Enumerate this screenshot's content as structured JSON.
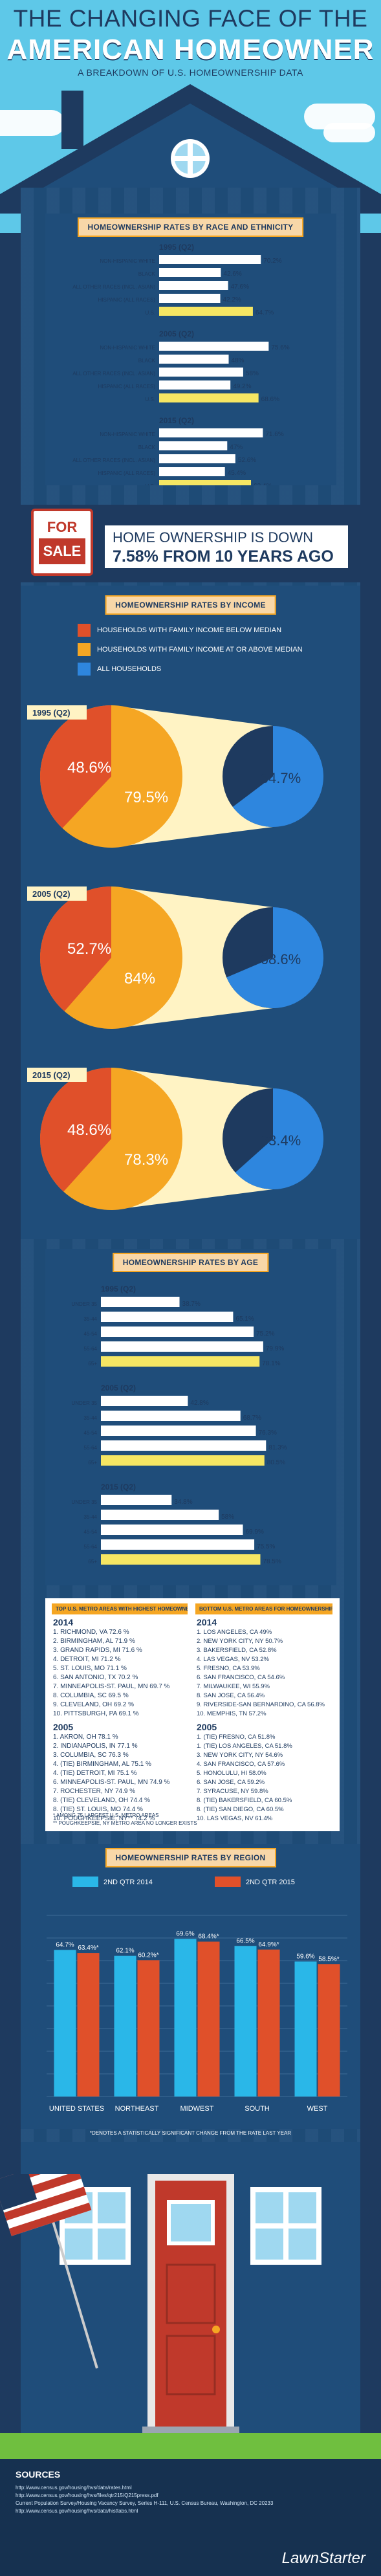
{
  "header": {
    "title_line1": "THE CHANGING FACE OF THE",
    "title_line2": "AMERICAN HOMEOWNER",
    "subtitle": "A BREAKDOWN OF U.S. HOMEOWNERSHIP DATA"
  },
  "sections": {
    "race_title": "HOMEOWNERSHIP RATES BY RACE AND ETHNICITY",
    "income_title": "HOMEOWNERSHIP RATES BY INCOME",
    "age_title": "HOMEOWNERSHIP RATES BY AGE",
    "region_title": "HOMEOWNERSHIP RATES BY REGION"
  },
  "down_banner": {
    "sign_for": "FOR",
    "sign_sale": "SALE",
    "line1": "HOME OWNERSHIP IS DOWN",
    "line2": "7.58% FROM 10 YEARS AGO"
  },
  "income_legend": [
    {
      "label": "HOUSEHOLDS WITH FAMILY INCOME BELOW MEDIAN",
      "color": "#e0502a"
    },
    {
      "label": "HOUSEHOLDS WITH FAMILY INCOME AT OR ABOVE MEDIAN",
      "color": "#f5a623"
    },
    {
      "label": "ALL HOUSEHOLDS",
      "color": "#2e86de"
    }
  ],
  "metro_lists": {
    "highest_head": "TOP U.S. METRO AREAS WITH HIGHEST HOMEOWNERSHIP RATES",
    "lowest_head": "BOTTOM U.S. METRO AREAS FOR HOMEOWNERSHIP RATES",
    "highest": [
      {
        "year": "2014",
        "items": [
          "1. RICHMOND, VA 72.6 %",
          "2. BIRMINGHAM, AL 71.9 %",
          "3. GRAND RAPIDS, MI 71.6 %",
          "4. DETROIT, MI 71.2 %",
          "5. ST. LOUIS, MO 71.1 %",
          "6. SAN ANTONIO, TX 70.2 %",
          "7. MINNEAPOLIS-ST. PAUL, MN 69.7 %",
          "8. COLUMBIA, SC 69.5 %",
          "9. CLEVELAND, OH 69.2 %",
          "10. PITTSBURGH, PA 69.1 %"
        ]
      },
      {
        "year": "2005",
        "items": [
          "1. AKRON, OH 78.1 %",
          "2. INDIANAPOLIS, IN 77.1 %",
          "3. COLUMBIA, SC 76.3 %",
          "4. (TIE) BIRMINGHAM, AL 75.1 %",
          "4. (TIE) DETROIT, MI 75.1 %",
          "6. MINNEAPOLIS-ST. PAUL, MN 74.9 %",
          "7. ROCHESTER, NY 74.9 %",
          "8. (TIE) CLEVELAND, OH 74.4 %",
          "8. (TIE) ST. LOUIS, MO 74.4 %",
          "10. POUGHKEEPSIE, NY** 74.2 %"
        ]
      }
    ],
    "lowest": [
      {
        "year": "2014",
        "items": [
          "1. LOS ANGELES, CA 49%",
          "2. NEW YORK CITY, NY 50.7%",
          "3. BAKERSFIELD, CA 52.8%",
          "4. LAS VEGAS, NV 53.2%",
          "5. FRESNO, CA 53.9%",
          "6. SAN FRANCISCO, CA 54.6%",
          "7. MILWAUKEE, WI 55.9%",
          "8. SAN JOSE, CA 56.4%",
          "9. RIVERSIDE-SAN BERNARDINO, CA 56.8%",
          "10. MEMPHIS, TN 57.2%"
        ]
      },
      {
        "year": "2005",
        "items": [
          "1. (TIE) FRESNO, CA 51.8%",
          "1. (TIE) LOS ANGELES, CA 51.8%",
          "3. NEW YORK CITY, NY 54.6%",
          "4. SAN FRANCISCO, CA 57.6%",
          "5. HONOLULU, HI 58.0%",
          "6. SAN JOSE, CA 59.2%",
          "7. SYRACUSE, NY 59.8%",
          "8. (TIE) BAKERSFIELD, CA 60.5%",
          "8. (TIE) SAN DIEGO, CA 60.5%",
          "10. LAS VEGAS, NV 61.4%"
        ]
      }
    ],
    "note1": "* AMONG 75 LARGEST U.S. METRO AREAS",
    "note2": "** POUGHKEEPSIE, NY METRO AREA NO LONGER EXISTS"
  },
  "region_note": "*DENOTES A STATISTICALLY SIGNIFICANT CHANGE FROM THE RATE LAST YEAR",
  "sources": {
    "title": "SOURCES",
    "lines": [
      "http://www.census.gov/housing/hvs/data/rates.html",
      "http://www.census.gov/housing/hvs/files/qtr215/Q215press.pdf",
      "Current Population Survey/Housing Vacancy Survey, Series H-111, U.S. Census Bureau, Washington, DC 20233",
      "http://www.census.gov/housing/hvs/data/histtabs.html"
    ],
    "brand": "LawnStarter"
  },
  "chart_data": [
    {
      "type": "bar",
      "title": "HOMEOWNERSHIP RATES BY RACE AND ETHNICITY",
      "categories": [
        "NON-HISPANIC WHITE",
        "BLACK",
        "ALL OTHER RACES (INCL. ASIAN)",
        "HISPANIC (ALL RACES)",
        "U.S."
      ],
      "series": [
        {
          "name": "1995 (Q2)",
          "values": [
            70.2,
            42.6,
            47.6,
            42.2,
            64.7
          ],
          "labels": [
            "70.2%",
            "42.6%",
            "47.6%",
            "42.2%",
            "64.7%"
          ]
        },
        {
          "name": "2005 (Q2)",
          "values": [
            75.6,
            48,
            58,
            49.2,
            68.6
          ],
          "labels": [
            "75.6%",
            "48%",
            "58%",
            "49.2%",
            "68.6%"
          ]
        },
        {
          "name": "2015 (Q2)",
          "values": [
            71.6,
            47,
            52.6,
            45.4,
            63.4
          ],
          "labels": [
            "71.6%",
            "47%",
            "52.6%",
            "45.4%",
            "63.4%"
          ]
        }
      ],
      "xlim": [
        0,
        100
      ],
      "highlight_color": "#f5e663",
      "bar_color": "#ffffff"
    },
    {
      "type": "pie",
      "title": "HOMEOWNERSHIP RATES BY INCOME",
      "groups": [
        {
          "year": "1995 (Q2)",
          "below_median": 48.6,
          "above_median": 79.5,
          "all": 64.7,
          "below_label": "48.6%",
          "above_label": "79.5%",
          "all_label": "64.7%"
        },
        {
          "year": "2005 (Q2)",
          "below_median": 52.7,
          "above_median": 84,
          "all": 68.6,
          "below_label": "52.7%",
          "above_label": "84%",
          "all_label": "68.6%"
        },
        {
          "year": "2015 (Q2)",
          "below_median": 48.6,
          "above_median": 78.3,
          "all": 63.4,
          "below_label": "48.6%",
          "above_label": "78.3%",
          "all_label": "63.4%"
        }
      ]
    },
    {
      "type": "bar",
      "title": "HOMEOWNERSHIP RATES BY AGE",
      "categories": [
        "UNDER 35",
        "35-44",
        "45-54",
        "55-64",
        "65+"
      ],
      "series": [
        {
          "name": "1995 (Q2)",
          "values": [
            38.7,
            65.1,
            75.2,
            79.9,
            78.1
          ],
          "labels": [
            "38.7%",
            "65.1%",
            "75.2%",
            "79.9%",
            "78.1%"
          ]
        },
        {
          "name": "2005 (Q2)",
          "values": [
            42.8,
            68.7,
            76.3,
            81.3,
            80.5
          ],
          "labels": [
            "42.8%",
            "68.7%",
            "76.3%",
            "81.3%",
            "80.5%"
          ]
        },
        {
          "name": "2015 (Q2)",
          "values": [
            34.8,
            58,
            69.9,
            75.5,
            78.5
          ],
          "labels": [
            "34.8%",
            "58%",
            "69.9%",
            "75.5%",
            "78.5%"
          ]
        }
      ],
      "xlim": [
        0,
        100
      ],
      "highlight_color": "#f5e663",
      "bar_color": "#ffffff"
    },
    {
      "type": "bar",
      "title": "HOMEOWNERSHIP RATES BY REGION",
      "categories": [
        "UNITED STATES",
        "NORTHEAST",
        "MIDWEST",
        "SOUTH",
        "WEST"
      ],
      "series": [
        {
          "name": "2ND QTR 2014",
          "color": "#2ab7e8",
          "values": [
            64.7,
            62.1,
            69.6,
            66.5,
            59.6
          ],
          "labels": [
            "64.7%",
            "62.1%",
            "69.6%",
            "66.5%",
            "59.6%"
          ]
        },
        {
          "name": "2ND QTR 2015",
          "color": "#e0502a",
          "values": [
            63.4,
            60.2,
            68.4,
            64.9,
            58.5
          ],
          "labels": [
            "63.4%*",
            "60.2%*",
            "68.4%*",
            "64.9%*",
            "58.5%*"
          ]
        }
      ],
      "ylim": [
        0,
        80
      ],
      "grid": true,
      "legend_position": "top"
    }
  ]
}
